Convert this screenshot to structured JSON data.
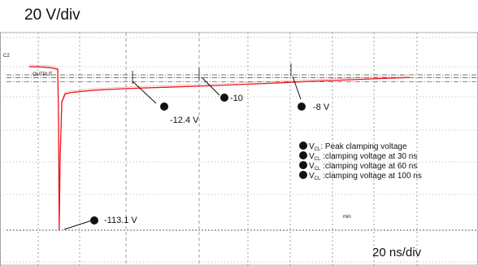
{
  "vertical_scale": "20 V/div",
  "horizontal_scale": "20 ns/div",
  "channel_tag": "C2",
  "trace_tag": "OUTPUT",
  "min_tag": "min",
  "colors": {
    "trace": "#e8141b",
    "grid": "#777777",
    "cursor": "#444444"
  },
  "chart_data": {
    "type": "line",
    "x_unit": "ns",
    "y_unit": "V",
    "x_per_div": 20,
    "y_per_div": 20,
    "ylim": [
      -120,
      30
    ],
    "xlim": [
      0,
      200
    ],
    "series": [
      {
        "name": "",
        "x": [
          0,
          5,
          10,
          14,
          17.5,
          18,
          18.4,
          19,
          20,
          22,
          25,
          28,
          30,
          35,
          40,
          50,
          60,
          70,
          80,
          90,
          100,
          110,
          120,
          130,
          140,
          150,
          160,
          170,
          180,
          190,
          200
        ],
        "y": [
          6,
          5.8,
          5.5,
          5,
          4,
          -30,
          -113.1,
          -60,
          -20,
          -14,
          -13,
          -12.6,
          -12.4,
          -11.8,
          -11.2,
          -10.6,
          -10,
          -9.5,
          -9,
          -8.5,
          -8,
          -7.4,
          -6.8,
          -6.2,
          -5.5,
          -4.8,
          -4.2,
          -3.6,
          -3.0,
          -2.4,
          -2.0
        ]
      }
    ],
    "annotations": [
      {
        "marker": "1",
        "label": "-113.1 V",
        "x": 18.4,
        "y": -113.1
      },
      {
        "marker": "2",
        "label": "-12.4 V",
        "x": 30,
        "y": -12.4
      },
      {
        "marker": "3",
        "label": "-10",
        "x": 60,
        "y": -10
      },
      {
        "marker": "4",
        "label": "-8 V",
        "x": 100,
        "y": -8
      }
    ],
    "legend": {
      "placement": "right",
      "items": [
        {
          "marker": "1",
          "symbol": "V",
          "sub": "CL",
          "text": ": Peak clamping  voltage"
        },
        {
          "marker": "2",
          "symbol": "V",
          "sub": "CL",
          "text": " :clamping voltage at 30 ns"
        },
        {
          "marker": "3",
          "symbol": "V",
          "sub": "CL",
          "text": " :clamping voltage at 60 ns"
        },
        {
          "marker": "4",
          "symbol": "V",
          "sub": "CL",
          "text": " :clamping voltage at 100 ns"
        }
      ]
    },
    "grid": true
  }
}
